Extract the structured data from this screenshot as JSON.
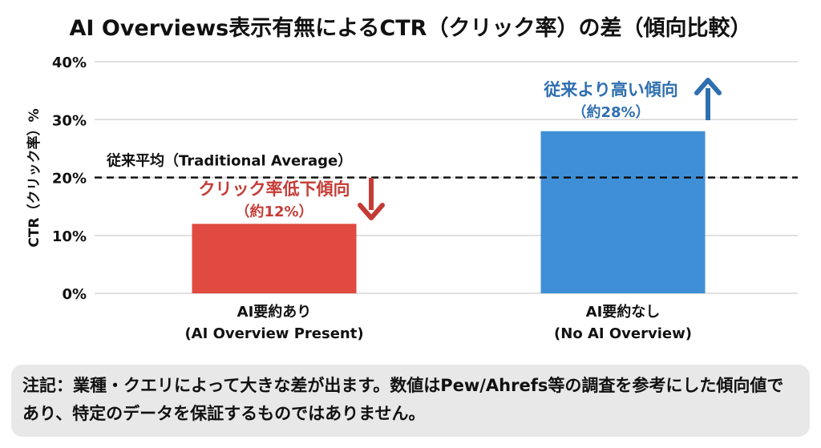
{
  "chart_data": {
    "type": "bar",
    "title": "AI Overviews表示有無によるCTR（クリック率）の差（傾向比較）",
    "ylabel": "CTR（クリック率）%",
    "xlabel": "",
    "ylim": [
      0,
      40
    ],
    "yticks": [
      0,
      10,
      20,
      30,
      40
    ],
    "ytick_labels": [
      "0%",
      "10%",
      "20%",
      "30%",
      "40%"
    ],
    "grid": true,
    "categories": [
      "AI要約あり\n(AI Overview Present)",
      "AI要約なし\n(No AI Overview)"
    ],
    "category_lines": [
      [
        "AI要約あり",
        "(AI Overview Present)"
      ],
      [
        "AI要約なし",
        "(No AI Overview)"
      ]
    ],
    "values": [
      12,
      28
    ],
    "colors": [
      "#e04a40",
      "#3f8fd6"
    ],
    "reference_line": {
      "value": 20,
      "label": "従来平均（Traditional Average）",
      "style": "dashed"
    },
    "annotations": [
      {
        "lines": [
          "クリック率低下傾向",
          "（約12%）"
        ],
        "color": "#c43c36",
        "arrow": "down"
      },
      {
        "lines": [
          "従来より高い傾向",
          "（約28%）"
        ],
        "color": "#2f6fb0",
        "arrow": "up"
      }
    ]
  },
  "note": "注記：業種・クエリによって大きな差が出ます。数値はPew/Ahrefs等の調査を参考にした傾向値であり、特定のデータを保証するものではありません。"
}
